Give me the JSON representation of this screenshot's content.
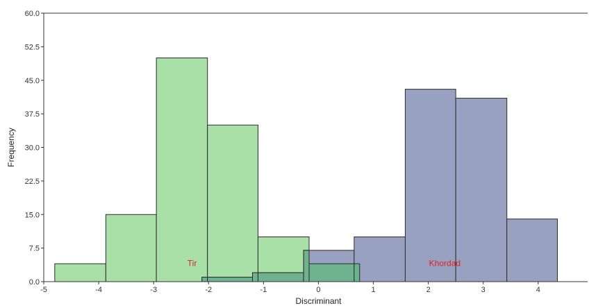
{
  "chart_data": {
    "type": "histogram",
    "xlabel": "Discriminant",
    "ylabel": "Frequency",
    "xlim": [
      -5,
      4.9
    ],
    "ylim": [
      0,
      60
    ],
    "x_ticks": [
      -5,
      -4,
      -3,
      -2,
      -1,
      0,
      1,
      2,
      3,
      4
    ],
    "y_ticks": [
      "0.0",
      "7.5",
      "15.0",
      "22.5",
      "30.0",
      "37.5",
      "45.0",
      "52.5",
      "60.0"
    ],
    "grid": false,
    "series": [
      {
        "name": "Tir",
        "color": "#a8e0a8",
        "bins": [
          {
            "x0": -4.8,
            "x1": -3.87,
            "value": 4
          },
          {
            "x0": -3.87,
            "x1": -2.95,
            "value": 15
          },
          {
            "x0": -2.95,
            "x1": -2.02,
            "value": 50
          },
          {
            "x0": -2.02,
            "x1": -1.1,
            "value": 35
          },
          {
            "x0": -1.1,
            "x1": -0.17,
            "value": 10
          },
          {
            "x0": -0.17,
            "x1": 0.75,
            "value": 4
          }
        ]
      },
      {
        "name": "Khordad",
        "color": "#98a2c0",
        "bins": [
          {
            "x0": -2.12,
            "x1": -1.2,
            "value": 1
          },
          {
            "x0": -1.2,
            "x1": -0.27,
            "value": 2
          },
          {
            "x0": -0.27,
            "x1": 0.65,
            "value": 7
          },
          {
            "x0": 0.65,
            "x1": 1.58,
            "value": 10
          },
          {
            "x0": 1.58,
            "x1": 2.5,
            "value": 43
          },
          {
            "x0": 2.5,
            "x1": 3.43,
            "value": 41
          },
          {
            "x0": 3.43,
            "x1": 4.35,
            "value": 14
          }
        ]
      }
    ],
    "annotations": [
      {
        "text": "Tir",
        "x": -2.3,
        "y": 3.5,
        "color": "#e02020"
      },
      {
        "text": "Khordad",
        "x": 2.3,
        "y": 3.5,
        "color": "#e02020"
      }
    ],
    "overlap_color": "#6fb28e"
  }
}
